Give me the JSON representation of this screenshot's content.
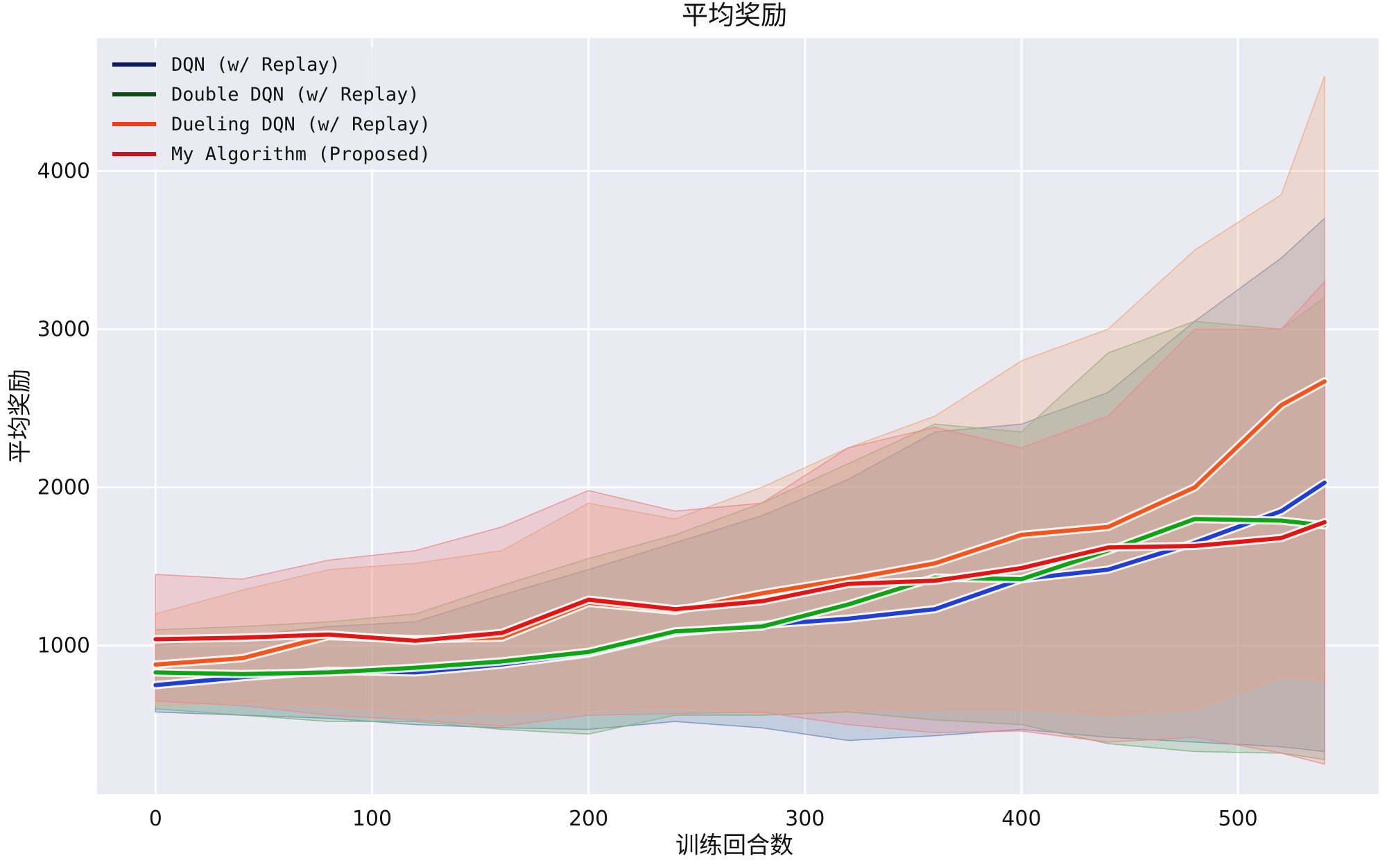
{
  "chart_data": {
    "type": "line",
    "title": "平均奖励",
    "xlabel": "训练回合数",
    "ylabel": "平均奖励",
    "xlim": [
      -27,
      565
    ],
    "ylim": [
      60,
      4840
    ],
    "xticks": [
      0,
      100,
      200,
      300,
      400,
      500
    ],
    "yticks": [
      1000,
      2000,
      3000,
      4000
    ],
    "grid": true,
    "legend_position": "top-left",
    "background": "#eaeaf2",
    "series": [
      {
        "name": "DQN (w/ Replay)",
        "legend_color": "#0a1a5c",
        "line_color": "#1f3fd1",
        "band_color": "#6a8ab5",
        "x": [
          0,
          40,
          80,
          120,
          160,
          200,
          240,
          280,
          320,
          360,
          400,
          440,
          480,
          520,
          540
        ],
        "mean": [
          750,
          800,
          840,
          830,
          880,
          950,
          1080,
          1130,
          1170,
          1230,
          1420,
          1480,
          1650,
          1850,
          2030
        ],
        "upper": [
          1000,
          1060,
          1120,
          1150,
          1320,
          1480,
          1650,
          1820,
          2050,
          2350,
          2400,
          2600,
          3050,
          3450,
          3700
        ],
        "lower": [
          580,
          560,
          540,
          500,
          480,
          470,
          520,
          480,
          400,
          430,
          470,
          420,
          390,
          360,
          330
        ]
      },
      {
        "name": "Double DQN (w/ Replay)",
        "legend_color": "#0d4a12",
        "line_color": "#11a316",
        "band_color": "#7fb07f",
        "x": [
          0,
          40,
          80,
          120,
          160,
          200,
          240,
          280,
          320,
          360,
          400,
          440,
          480,
          520,
          540
        ],
        "mean": [
          830,
          820,
          830,
          860,
          900,
          960,
          1090,
          1120,
          1260,
          1430,
          1420,
          1600,
          1800,
          1790,
          1760
        ],
        "upper": [
          1100,
          1120,
          1150,
          1200,
          1380,
          1550,
          1700,
          1900,
          2150,
          2400,
          2350,
          2850,
          3050,
          3000,
          3200
        ],
        "lower": [
          600,
          560,
          520,
          520,
          470,
          440,
          560,
          560,
          580,
          530,
          500,
          380,
          330,
          320,
          280
        ]
      },
      {
        "name": "Dueling DQN (w/ Replay)",
        "legend_color": "#f03a17",
        "line_color": "#f2551e",
        "band_color": "#f0aa82",
        "x": [
          0,
          40,
          80,
          120,
          160,
          200,
          240,
          280,
          320,
          360,
          400,
          440,
          480,
          520,
          540
        ],
        "mean": [
          880,
          920,
          1060,
          1040,
          1050,
          1270,
          1220,
          1330,
          1420,
          1520,
          1700,
          1750,
          2000,
          2520,
          2670
        ],
        "upper": [
          1200,
          1350,
          1480,
          1520,
          1600,
          1900,
          1800,
          2000,
          2250,
          2450,
          2800,
          3000,
          3500,
          3850,
          4600
        ],
        "lower": [
          620,
          640,
          620,
          560,
          580,
          590,
          610,
          570,
          590,
          600,
          600,
          560,
          600,
          800,
          780
        ]
      },
      {
        "name": "My Algorithm (Proposed)",
        "legend_color": "#c8141d",
        "line_color": "#e01616",
        "band_color": "#e88a8a",
        "x": [
          0,
          40,
          80,
          120,
          160,
          200,
          240,
          280,
          320,
          360,
          400,
          440,
          480,
          520,
          540
        ],
        "mean": [
          1040,
          1050,
          1070,
          1030,
          1080,
          1290,
          1230,
          1280,
          1390,
          1410,
          1490,
          1620,
          1630,
          1680,
          1780
        ],
        "upper": [
          1450,
          1420,
          1540,
          1600,
          1750,
          1980,
          1850,
          1900,
          2250,
          2380,
          2250,
          2450,
          3000,
          3000,
          3300
        ],
        "lower": [
          650,
          620,
          560,
          530,
          490,
          560,
          570,
          580,
          500,
          450,
          460,
          390,
          420,
          320,
          250
        ]
      }
    ]
  }
}
